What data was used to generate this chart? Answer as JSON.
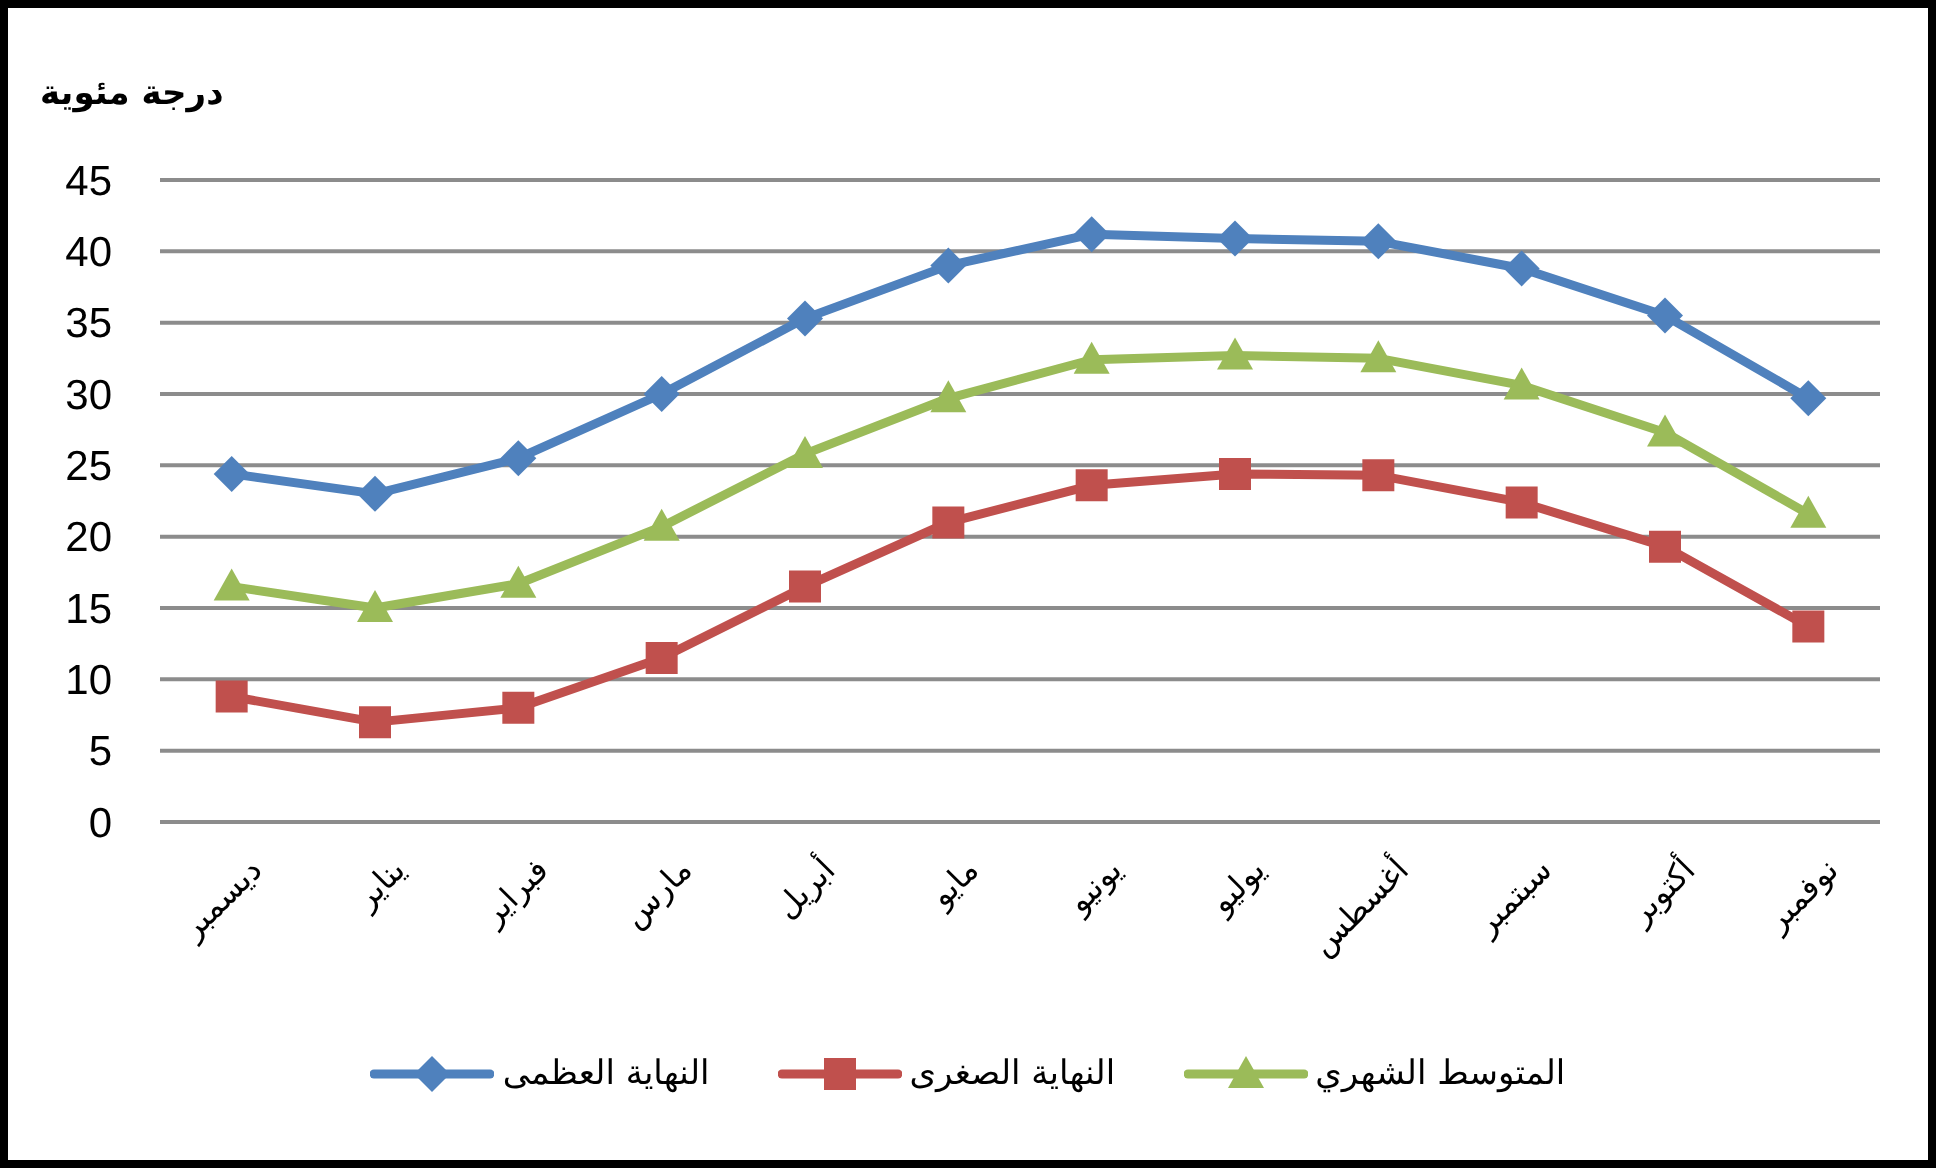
{
  "chart_data": {
    "type": "line",
    "ylabel": "درجة مئوية",
    "categories": [
      "ديسمبر",
      "يناير",
      "فبراير",
      "مارس",
      "أبريل",
      "مايو",
      "يونيو",
      "يوليو",
      "أغسطس",
      "سبتمبر",
      "أكتوبر",
      "نوفمبر"
    ],
    "series": [
      {
        "name": "النهاية العظمى",
        "color": "#4f81bd",
        "marker": "diamond",
        "values": [
          24.4,
          23.0,
          25.5,
          30.0,
          35.3,
          39.0,
          41.2,
          40.9,
          40.7,
          38.8,
          35.5,
          29.7
        ]
      },
      {
        "name": "النهاية الصغرى",
        "color": "#c0504d",
        "marker": "square",
        "values": [
          8.8,
          7.0,
          8.0,
          11.5,
          16.5,
          21.0,
          23.6,
          24.4,
          24.3,
          22.4,
          19.3,
          13.7
        ]
      },
      {
        "name": "المتوسط الشهري",
        "color": "#9bbb59",
        "marker": "triangle",
        "values": [
          16.5,
          15.0,
          16.7,
          20.7,
          25.8,
          29.7,
          32.4,
          32.7,
          32.5,
          30.6,
          27.3,
          21.6
        ]
      }
    ],
    "ylim": [
      0,
      45
    ],
    "yticks": [
      0,
      5,
      10,
      15,
      20,
      25,
      30,
      35,
      40,
      45
    ],
    "grid": "y",
    "legend": "bottom"
  }
}
